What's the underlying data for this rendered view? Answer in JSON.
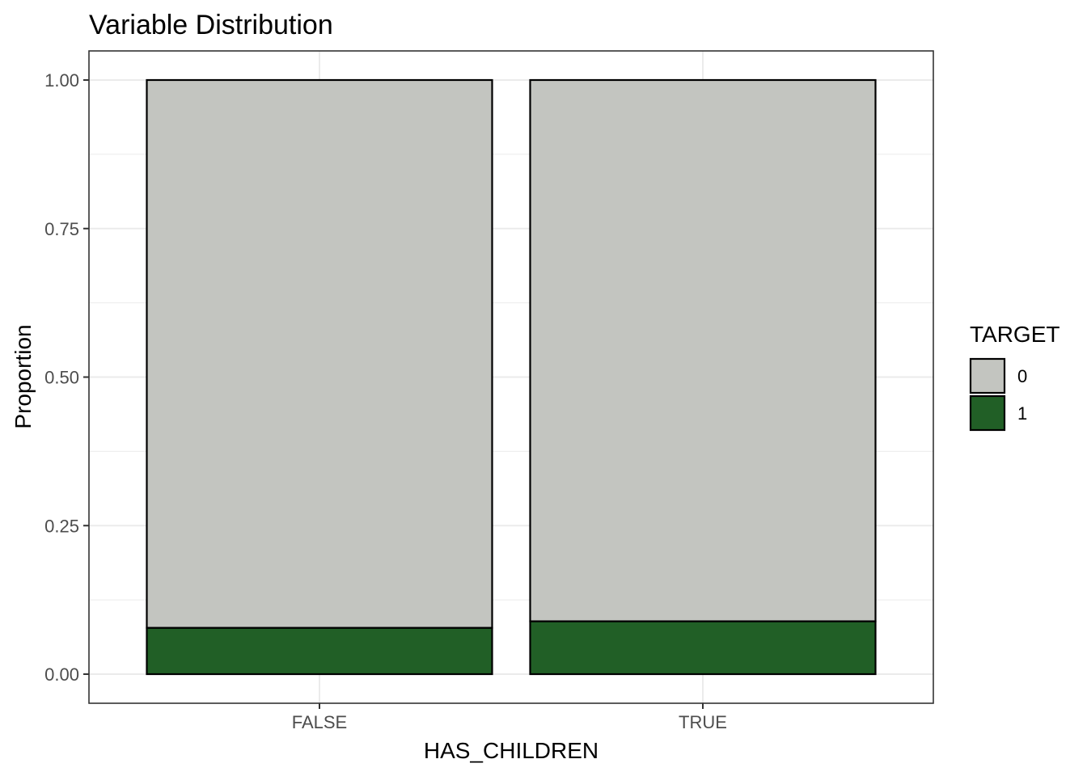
{
  "chart_data": {
    "type": "bar",
    "stacked": true,
    "title": "Variable Distribution",
    "xlabel": "HAS_CHILDREN",
    "ylabel": "Proportion",
    "categories": [
      "FALSE",
      "TRUE"
    ],
    "series": [
      {
        "name": "0",
        "color": "#c3c5c0",
        "values": [
          0.922,
          0.911
        ]
      },
      {
        "name": "1",
        "color": "#215f26",
        "values": [
          0.078,
          0.089
        ]
      }
    ],
    "ylim": [
      0,
      1
    ],
    "yticks": [
      "0.00",
      "0.25",
      "0.50",
      "0.75",
      "1.00"
    ],
    "grid": true,
    "legend": {
      "title": "TARGET",
      "position": "right"
    }
  }
}
